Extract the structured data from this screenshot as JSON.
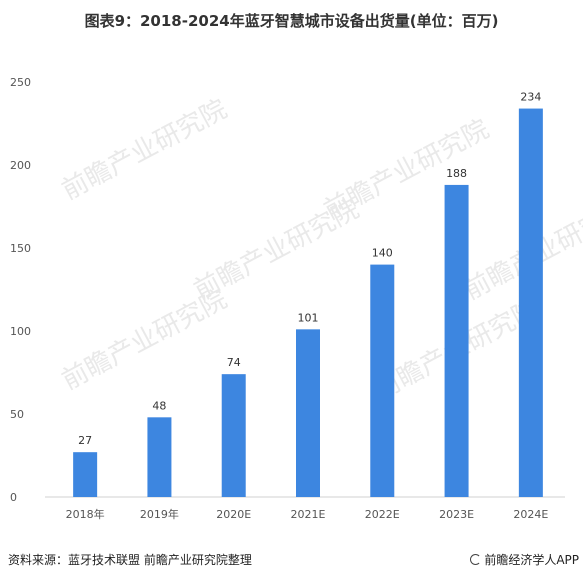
{
  "chart_data": {
    "type": "bar",
    "title": "图表9：2018-2024年蓝牙智慧城市设备出货量(单位：百万)",
    "categories": [
      "2018年",
      "2019年",
      "2020E",
      "2021E",
      "2022E",
      "2023E",
      "2024E"
    ],
    "values": [
      27,
      48,
      74,
      101,
      140,
      188,
      234
    ],
    "ylim": [
      0,
      250
    ],
    "yticks": [
      0,
      50,
      100,
      150,
      200,
      250
    ],
    "xlabel": "",
    "ylabel": "",
    "grid": false,
    "bar_color": "#3D86E0"
  },
  "footer": {
    "source": "资料来源：蓝牙技术联盟 前瞻产业研究院整理",
    "brand": "前瞻经济学人APP"
  },
  "watermark": {
    "text": "前瞻产业研究院"
  }
}
